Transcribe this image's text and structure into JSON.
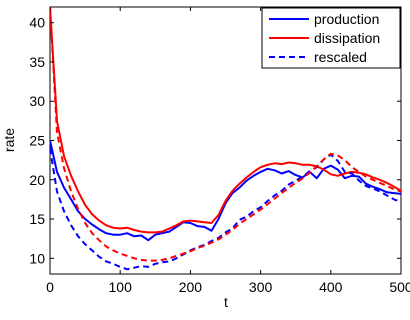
{
  "chart_data": {
    "type": "line",
    "title": "",
    "xlabel": "t",
    "ylabel": "rate",
    "xlim": [
      0,
      500
    ],
    "ylim": [
      8,
      42
    ],
    "x_ticks": [
      0,
      100,
      200,
      300,
      400,
      500
    ],
    "x_tick_labels": [
      "0",
      "100",
      "200",
      "300",
      "400",
      "500"
    ],
    "y_ticks": [
      10,
      15,
      20,
      25,
      30,
      35,
      40
    ],
    "y_tick_labels": [
      "10",
      "15",
      "20",
      "25",
      "30",
      "35",
      "40"
    ],
    "grid": false,
    "legend_position": "top-right",
    "series": [
      {
        "name": "production",
        "color": "#0000ff",
        "dash": "solid",
        "x": [
          0,
          10,
          20,
          30,
          40,
          50,
          60,
          70,
          80,
          90,
          100,
          110,
          120,
          130,
          140,
          150,
          160,
          170,
          180,
          190,
          200,
          210,
          220,
          230,
          240,
          250,
          260,
          270,
          280,
          290,
          300,
          310,
          320,
          330,
          340,
          350,
          360,
          370,
          380,
          390,
          400,
          410,
          420,
          430,
          440,
          450,
          460,
          470,
          480,
          490,
          500
        ],
        "y": [
          25,
          21,
          19,
          17.5,
          16,
          15,
          14.3,
          13.7,
          13.2,
          13,
          13,
          13.2,
          12.8,
          12.9,
          12.3,
          13,
          13.2,
          13.4,
          14,
          14.6,
          14.5,
          14.1,
          14,
          13.5,
          15,
          17,
          18.3,
          19,
          19.9,
          20.5,
          21,
          21.4,
          21.2,
          20.8,
          21.1,
          20.6,
          20.3,
          21,
          20.2,
          21.4,
          21.8,
          21.3,
          20.2,
          20.5,
          20.4,
          19.5,
          19.1,
          18.8,
          18.4,
          18.3,
          18.2
        ]
      },
      {
        "name": "dissipation",
        "color": "#ff0000",
        "dash": "solid",
        "x": [
          0,
          10,
          20,
          30,
          40,
          50,
          60,
          70,
          80,
          90,
          100,
          110,
          120,
          130,
          140,
          150,
          160,
          170,
          180,
          190,
          200,
          210,
          220,
          230,
          240,
          250,
          260,
          270,
          280,
          290,
          300,
          310,
          320,
          330,
          340,
          350,
          360,
          370,
          380,
          390,
          400,
          410,
          420,
          430,
          440,
          450,
          460,
          470,
          480,
          490,
          500
        ],
        "y": [
          42,
          27.5,
          23,
          20.5,
          18.5,
          16.8,
          15.6,
          14.8,
          14.2,
          13.9,
          13.8,
          13.9,
          13.6,
          13.4,
          13.3,
          13.3,
          13.4,
          13.8,
          14.2,
          14.7,
          14.8,
          14.7,
          14.6,
          14.5,
          15.5,
          17.3,
          18.6,
          19.5,
          20.3,
          21,
          21.6,
          21.9,
          22.1,
          22.0,
          22.2,
          22.1,
          21.9,
          21.9,
          21.7,
          21.3,
          20.7,
          20.5,
          20.8,
          21.0,
          20.9,
          20.7,
          20.3,
          20.0,
          19.6,
          19.1,
          18.6
        ]
      },
      {
        "name": "rescaled",
        "color": "#0000ff",
        "dash": "dashed",
        "x": [
          0,
          10,
          20,
          30,
          40,
          50,
          60,
          70,
          80,
          90,
          100,
          110,
          120,
          130,
          140,
          150,
          160,
          170,
          180,
          190,
          200,
          210,
          220,
          230,
          240,
          250,
          260,
          270,
          280,
          290,
          300,
          310,
          320,
          330,
          340,
          350,
          360,
          370,
          380,
          390,
          400,
          410,
          420,
          430,
          440,
          450,
          460,
          470,
          480,
          490,
          500
        ],
        "y": [
          24,
          18.5,
          16,
          14.2,
          12.8,
          11.8,
          11.0,
          10.2,
          9.6,
          9.3,
          8.9,
          8.6,
          8.8,
          9.0,
          8.9,
          9.3,
          9.5,
          9.6,
          10.0,
          10.5,
          11.0,
          11.4,
          11.7,
          12.2,
          12.6,
          13.3,
          13.8,
          14.9,
          15.3,
          16.0,
          16.5,
          17.3,
          18.0,
          18.6,
          19.4,
          19.9,
          20.4,
          21.1,
          21.6,
          22.6,
          23.2,
          22.4,
          21.0,
          20.8,
          19.9,
          19.2,
          18.9,
          18.5,
          18.0,
          17.5,
          17.2
        ]
      },
      {
        "name": "",
        "color": "#ff0000",
        "dash": "dashed",
        "x": [
          0,
          10,
          20,
          30,
          40,
          50,
          60,
          70,
          80,
          90,
          100,
          110,
          120,
          130,
          140,
          150,
          160,
          170,
          180,
          190,
          200,
          210,
          220,
          230,
          240,
          250,
          260,
          270,
          280,
          290,
          300,
          310,
          320,
          330,
          340,
          350,
          360,
          370,
          380,
          390,
          400,
          410,
          420,
          430,
          440,
          450,
          460,
          470,
          480,
          490,
          500
        ],
        "y": [
          42,
          26,
          21.5,
          18.5,
          16.3,
          14.5,
          13.2,
          12.3,
          11.5,
          11.0,
          10.6,
          10.3,
          10.0,
          9.8,
          9.7,
          9.7,
          9.8,
          10.0,
          10.3,
          10.6,
          10.9,
          11.3,
          11.6,
          12.0,
          12.4,
          13.0,
          13.6,
          14.4,
          15.0,
          15.6,
          16.2,
          16.9,
          17.6,
          18.3,
          19.0,
          19.6,
          20.2,
          20.9,
          21.7,
          22.6,
          23.3,
          23.1,
          22.5,
          21.6,
          21.0,
          20.4,
          20.0,
          19.6,
          19.2,
          18.8,
          18.5
        ]
      }
    ]
  }
}
